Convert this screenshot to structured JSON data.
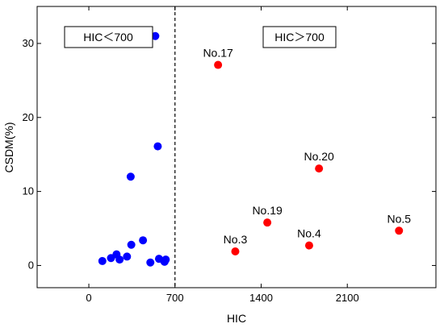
{
  "chart_data": {
    "type": "scatter",
    "title": "",
    "xlabel": "HIC",
    "ylabel": "CSDM(%)",
    "xlim": [
      -420,
      2820
    ],
    "ylim": [
      -3,
      35
    ],
    "xticks": [
      0,
      700,
      1400,
      2100
    ],
    "yticks": [
      0,
      10,
      20,
      30
    ],
    "threshold_x": 700,
    "grid": false,
    "regions": [
      {
        "label": "HIC＜700"
      },
      {
        "label": "HIC＞700"
      }
    ],
    "series": [
      {
        "color": "#0000ff",
        "points": [
          {
            "x": 110,
            "y": 0.6
          },
          {
            "x": 180,
            "y": 1.0
          },
          {
            "x": 225,
            "y": 1.5
          },
          {
            "x": 250,
            "y": 0.8
          },
          {
            "x": 310,
            "y": 1.2
          },
          {
            "x": 340,
            "y": 12.0
          },
          {
            "x": 345,
            "y": 2.8
          },
          {
            "x": 440,
            "y": 3.4
          },
          {
            "x": 500,
            "y": 0.4
          },
          {
            "x": 540,
            "y": 31.0
          },
          {
            "x": 560,
            "y": 16.1
          },
          {
            "x": 570,
            "y": 0.9
          },
          {
            "x": 615,
            "y": 0.5
          },
          {
            "x": 625,
            "y": 0.8
          }
        ]
      },
      {
        "color": "#ff0000",
        "points": [
          {
            "x": 1050,
            "y": 27.1,
            "label": "No.17"
          },
          {
            "x": 1190,
            "y": 1.9,
            "label": "No.3"
          },
          {
            "x": 1450,
            "y": 5.8,
            "label": "No.19"
          },
          {
            "x": 1790,
            "y": 2.7,
            "label": "No.4"
          },
          {
            "x": 1870,
            "y": 13.1,
            "label": "No.20"
          },
          {
            "x": 2520,
            "y": 4.7,
            "label": "No.5"
          }
        ]
      }
    ]
  }
}
